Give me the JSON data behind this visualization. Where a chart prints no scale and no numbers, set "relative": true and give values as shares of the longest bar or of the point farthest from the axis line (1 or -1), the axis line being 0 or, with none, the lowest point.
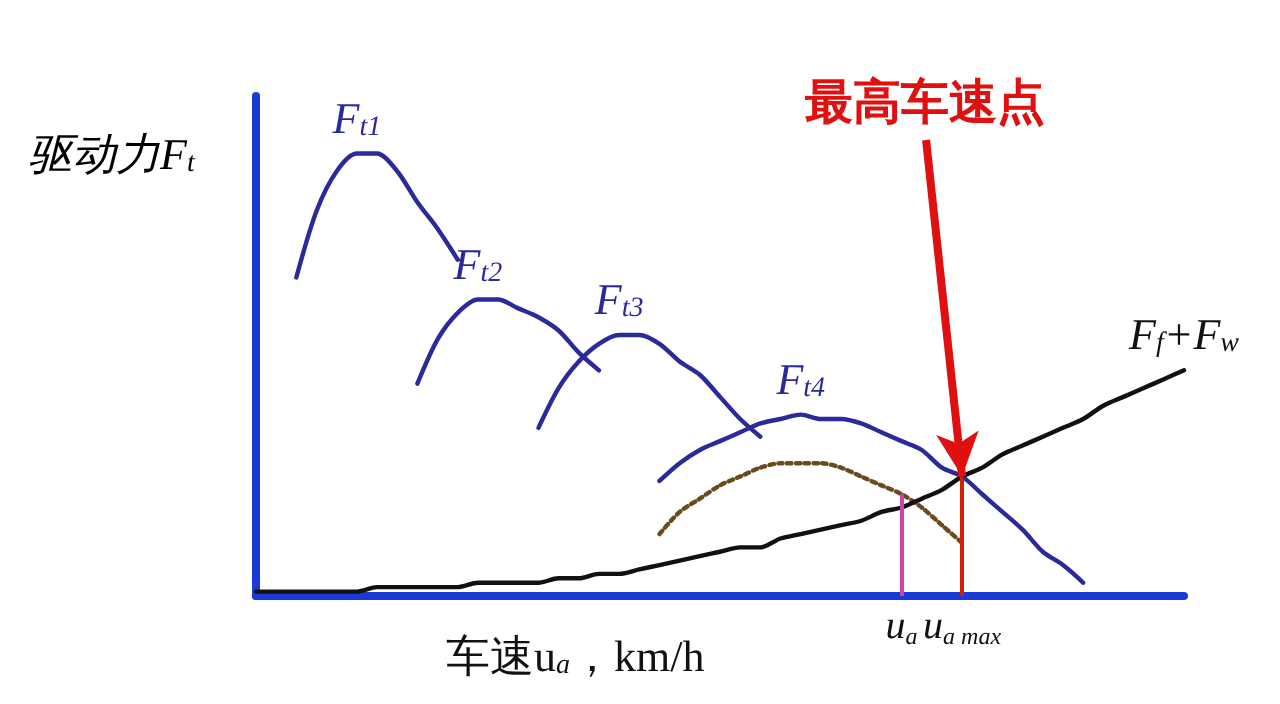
{
  "chart_data": {
    "type": "line",
    "relative": true,
    "ylabel": "驱动力F$_{t}$",
    "xlabel": "车速u$_{a}$，km/h",
    "legend": false,
    "grid": false,
    "marker": "none",
    "categories": [
      null,
      null,
      null,
      null,
      null,
      null,
      null,
      null,
      null,
      null,
      null,
      null,
      null,
      null,
      null,
      null,
      null,
      null,
      null,
      null,
      null,
      null,
      null,
      null,
      null,
      null,
      null,
      null,
      null,
      null,
      null,
      null,
      "u$_{a}$",
      null,
      null,
      "u$_{a max}$",
      null,
      null,
      null,
      null,
      null,
      null,
      null,
      null,
      null,
      null,
      null
    ],
    "series": [
      {
        "name": "F$_{t1}$",
        "color": "#2a2a9a",
        "values": [
          null,
          null,
          0.72,
          0.87,
          0.96,
          1.0,
          1.0,
          0.96,
          0.89,
          0.83,
          0.76,
          null,
          null,
          null,
          null,
          null,
          null,
          null,
          null,
          null,
          null,
          null,
          null,
          null,
          null,
          null,
          null,
          null,
          null,
          null,
          null,
          null,
          null,
          null,
          null,
          null,
          null,
          null,
          null,
          null,
          null,
          null,
          null,
          null,
          null,
          null,
          null
        ]
      },
      {
        "name": "F$_{t2}$",
        "color": "#2a2a9a",
        "values": [
          null,
          null,
          null,
          null,
          null,
          null,
          null,
          null,
          0.48,
          0.58,
          0.64,
          0.67,
          0.67,
          0.65,
          0.63,
          0.6,
          0.55,
          0.51,
          null,
          null,
          null,
          null,
          null,
          null,
          null,
          null,
          null,
          null,
          null,
          null,
          null,
          null,
          null,
          null,
          null,
          null,
          null,
          null,
          null,
          null,
          null,
          null,
          null,
          null,
          null,
          null,
          null
        ]
      },
      {
        "name": "F$_{t3}$",
        "color": "#2a2a9a",
        "values": [
          null,
          null,
          null,
          null,
          null,
          null,
          null,
          null,
          null,
          null,
          null,
          null,
          null,
          null,
          0.38,
          0.47,
          0.53,
          0.57,
          0.59,
          0.59,
          0.57,
          0.53,
          0.5,
          0.45,
          0.4,
          0.36,
          null,
          null,
          null,
          null,
          null,
          null,
          null,
          null,
          null,
          null,
          null,
          null,
          null,
          null,
          null,
          null,
          null,
          null,
          null,
          null,
          null
        ]
      },
      {
        "name": "F$_{t4}$",
        "color": "#2a2a9a",
        "values": [
          null,
          null,
          null,
          null,
          null,
          null,
          null,
          null,
          null,
          null,
          null,
          null,
          null,
          null,
          null,
          null,
          null,
          null,
          null,
          null,
          0.26,
          0.3,
          0.33,
          0.35,
          0.37,
          0.39,
          0.4,
          0.41,
          0.4,
          0.4,
          0.39,
          0.37,
          0.35,
          0.33,
          0.29,
          0.27,
          0.23,
          0.19,
          0.15,
          0.1,
          0.07,
          0.03,
          null,
          null,
          null,
          null,
          null
        ]
      },
      {
        "color": "#6b4a1e",
        "line_style": "dotted",
        "values": [
          null,
          null,
          null,
          null,
          null,
          null,
          null,
          null,
          null,
          null,
          null,
          null,
          null,
          null,
          null,
          null,
          null,
          null,
          null,
          null,
          0.14,
          0.19,
          0.22,
          0.25,
          0.27,
          0.29,
          0.3,
          0.3,
          0.3,
          0.29,
          0.27,
          0.25,
          0.23,
          0.2,
          0.16,
          0.12,
          null,
          null,
          null,
          null,
          null,
          null,
          null,
          null,
          null,
          null,
          null
        ]
      },
      {
        "name": "F$_{f}$+F$_{w}$",
        "color": "#111111",
        "values": [
          0.01,
          0.01,
          0.01,
          0.01,
          0.01,
          0.01,
          0.02,
          0.02,
          0.02,
          0.02,
          0.02,
          0.03,
          0.03,
          0.03,
          0.03,
          0.04,
          0.04,
          0.05,
          0.05,
          0.06,
          0.07,
          0.08,
          0.09,
          0.1,
          0.11,
          0.11,
          0.13,
          0.14,
          0.15,
          0.16,
          0.17,
          0.19,
          0.2,
          0.22,
          0.24,
          0.27,
          0.29,
          0.32,
          0.34,
          0.36,
          0.38,
          0.4,
          0.43,
          0.45,
          0.47,
          0.49,
          0.51
        ]
      }
    ],
    "ref_lines": [
      {
        "axis": "x",
        "value": "u$_{a}$",
        "color": "#cc44aa"
      },
      {
        "axis": "x",
        "value": "u$_{a max}$",
        "color": "#cc2200"
      }
    ],
    "annotations": [
      {
        "text": "最高车速点",
        "x": "u$_{a max}$",
        "y": 0.27
      }
    ]
  }
}
